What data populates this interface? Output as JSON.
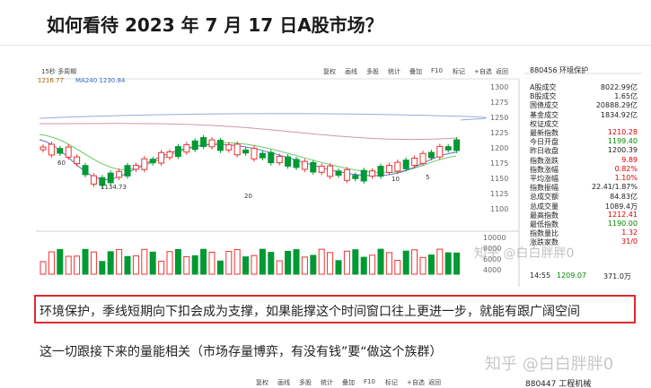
{
  "title": "如何看待 2023 年 7 月 17 日A股市场？",
  "figure": {
    "toolbar": [
      "复权",
      "画线",
      "多股",
      "统计",
      "叠加",
      "F10",
      "标记",
      "+自选",
      "返回"
    ],
    "period": "15秒 多周期",
    "ma_labels": [
      "1216.77",
      "MA240 1230.84"
    ],
    "price_axis": [
      "1300",
      "1275",
      "1250",
      "1225",
      "1200",
      "1175",
      "1150",
      "1125",
      "1100"
    ],
    "volume_axis": [
      "10000",
      "8000",
      "6000",
      "4000"
    ],
    "chart_labels": [
      "60",
      "1134.73",
      "20",
      "10",
      "5"
    ],
    "watermark": "知乎 @白白胖胖0",
    "panel": {
      "code_name": "880456 环境保护",
      "rows": [
        {
          "label": "A股成交",
          "value": "8022.99亿"
        },
        {
          "label": "B股成交",
          "value": "1.65亿"
        },
        {
          "label": "国债成交",
          "value": "20888.29亿"
        },
        {
          "label": "基金成交",
          "value": "1834.92亿"
        },
        {
          "label": "权证成交",
          "value": null
        },
        {
          "label": "最新指数",
          "value": "1210.28"
        },
        {
          "label": "今日开盘",
          "value": "1199.40"
        },
        {
          "label": "昨日收盘",
          "value": "1200.39"
        },
        {
          "label": "指数涨跌",
          "value": "9.89"
        },
        {
          "label": "指数涨幅",
          "value": "0.82%"
        },
        {
          "label": "平均涨幅",
          "value": "1.10%"
        },
        {
          "label": "指数振幅",
          "value": "22.41/1.87%"
        },
        {
          "label": "总成交额",
          "value": "84.83亿"
        },
        {
          "label": "总成交量",
          "value": "1089.4万"
        },
        {
          "label": "最高指数",
          "value": "1212.41"
        },
        {
          "label": "最低指数",
          "value": "1190.00"
        },
        {
          "label": "指数量比",
          "value": "1.32"
        },
        {
          "label": "涨跌家数",
          "value": "31/0"
        }
      ],
      "footer": [
        "14:55",
        "1209.07",
        "371.0万"
      ]
    }
  },
  "paragraphs": [
    "环境保护，季线短期向下扣会成为支撑，如果能撑这个时间窗口往上更进一步，就能有跟广阔空间",
    "这一切跟接下来的量能相关（市场存量博弈，有没有钱”要“做这个族群）"
  ],
  "watermark": "知乎 @白白胖胖0",
  "next_figure": {
    "toolbar": [
      "复权",
      "画线",
      "多股",
      "统计",
      "叠加",
      "F10",
      "标记",
      "+自选",
      "返回"
    ],
    "code_name": "880447 工程机械"
  }
}
